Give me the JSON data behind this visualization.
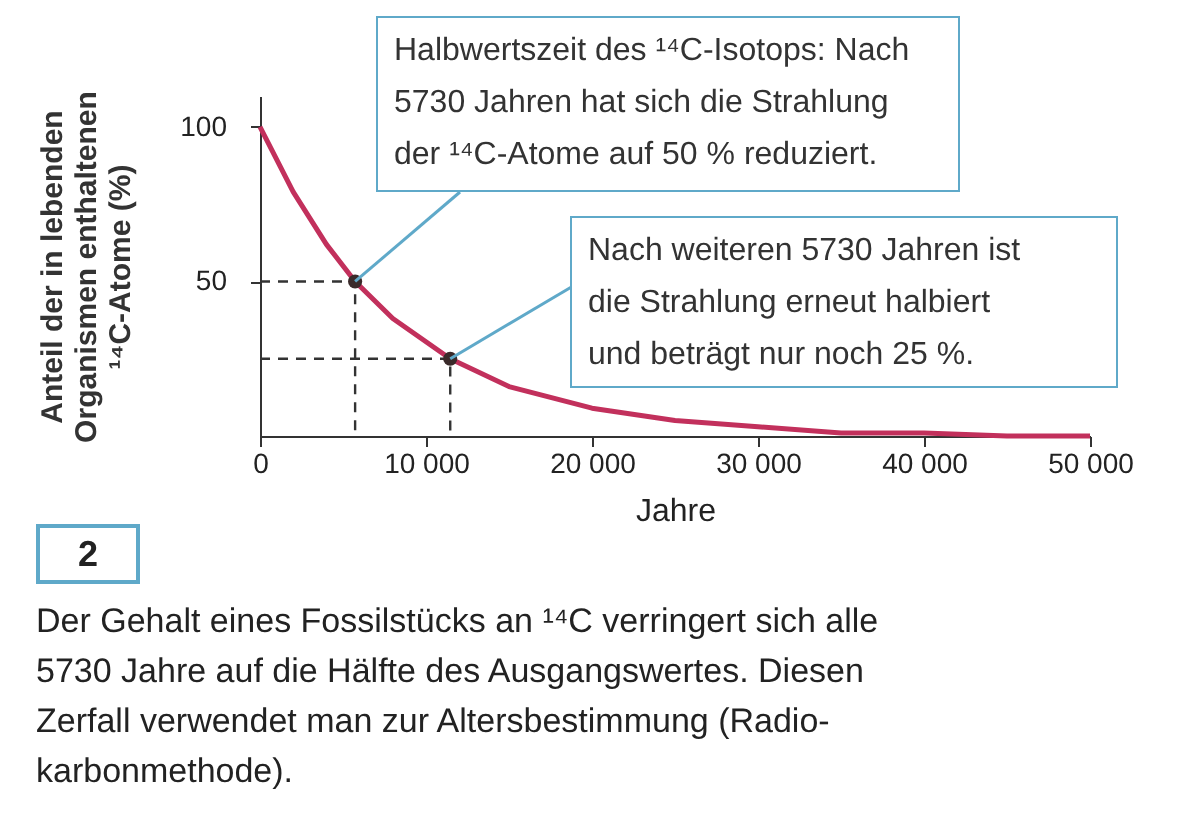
{
  "chart_data": {
    "type": "line",
    "xlabel": "Jahre",
    "ylabel": "Anteil der in lebenden\nOrganismen enthaltenen\n¹⁴C-Atome (%)",
    "xlim": [
      0,
      50000
    ],
    "ylim": [
      0,
      110
    ],
    "xticks": [
      0,
      {
        "value": 10000,
        "label": "10 000"
      },
      {
        "value": 20000,
        "label": "20 000"
      },
      {
        "value": 30000,
        "label": "30 000"
      },
      {
        "value": 40000,
        "label": "40 000"
      },
      {
        "value": 50000,
        "label": "50 000"
      }
    ],
    "yticks": [
      50,
      100
    ],
    "series": [
      {
        "color": "#c2305c",
        "marker": "none",
        "line_style": "solid",
        "x": [
          0,
          2000,
          4000,
          5730,
          8000,
          11460,
          15000,
          20000,
          25000,
          30000,
          35000,
          40000,
          45000,
          50000
        ],
        "values": [
          100,
          79,
          62,
          50,
          38,
          25,
          16,
          9,
          5,
          3,
          1,
          1,
          0,
          0
        ]
      },
      {
        "color": "#333333",
        "marker": "none",
        "line_style": "dashed",
        "x": [
          0,
          5730,
          5730
        ],
        "values": [
          50,
          50,
          0
        ]
      },
      {
        "color": "#333333",
        "marker": "none",
        "line_style": "dashed",
        "x": [
          0,
          11460,
          11460
        ],
        "values": [
          25,
          25,
          0
        ]
      },
      {
        "type": "scatter",
        "color": "#3a2a2a",
        "marker": "circle",
        "x": [
          5730,
          11460
        ],
        "values": [
          50,
          25
        ]
      }
    ],
    "annotations": [
      {
        "text": "Halbwertszeit des ¹⁴C-Isotops: Nach\n5730 Jahren hat sich die Strahlung\nder ¹⁴C-Atome auf 50 % reduziert.",
        "x": 5730,
        "y": 50
      },
      {
        "text": "Nach weiteren 5730 Jahren ist\ndie Strahlung erneut halbiert\nund beträgt nur noch 25 %.",
        "x": 11460,
        "y": 25
      },
      "2",
      "Der Gehalt eines Fossilstücks an ¹⁴C verringert sich alle\n5730 Jahre auf die Hälfte des Ausgangswertes. Diesen\nZerfall verwendet man zur Altersbestimmung (Radio-\nkarbonmethode)."
    ]
  }
}
